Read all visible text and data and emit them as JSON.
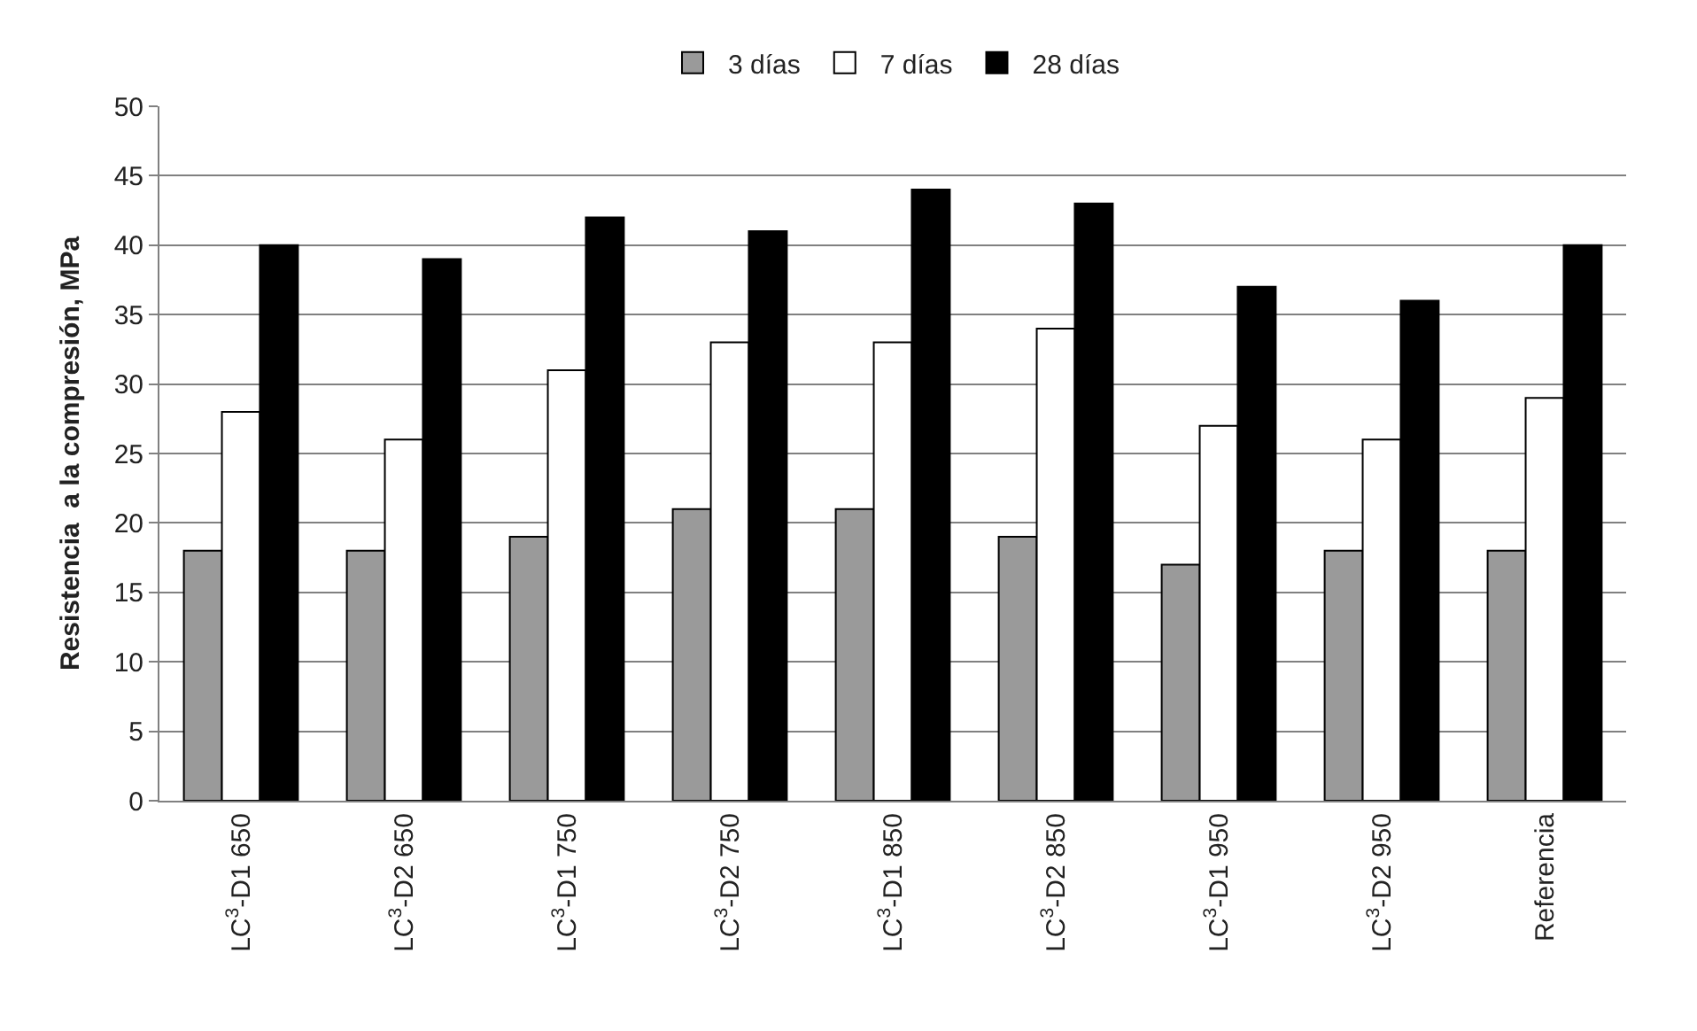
{
  "chart_data": {
    "type": "bar",
    "ylabel": "Resistencia  a la compresión, MPa",
    "categories": [
      "LC$^{3}$-D1 650",
      "LC$^{3}$-D2 650",
      "LC$^{3}$-D1 750",
      "LC$^{3}$-D2 750",
      "LC$^{3}$-D1 850",
      "LC$^{3}$-D2 850",
      "LC$^{3}$-D1 950",
      "LC$^{3}$-D2 950",
      "Referencia"
    ],
    "series": [
      {
        "name": "3 días",
        "color": "#9a9a9a",
        "values": [
          18,
          18,
          19,
          21,
          21,
          19,
          17,
          18,
          18
        ]
      },
      {
        "name": "7 días",
        "color": "#ffffff",
        "values": [
          28,
          26,
          31,
          33,
          33,
          34,
          27,
          26,
          29
        ]
      },
      {
        "name": "28 días",
        "color": "#000000",
        "values": [
          40,
          39,
          42,
          41,
          44,
          43,
          37,
          36,
          40
        ]
      }
    ],
    "ylim": [
      0,
      50
    ],
    "yticks": [
      0,
      5,
      10,
      15,
      20,
      25,
      30,
      35,
      40,
      45,
      50
    ],
    "grid": "y",
    "legend": "top"
  }
}
